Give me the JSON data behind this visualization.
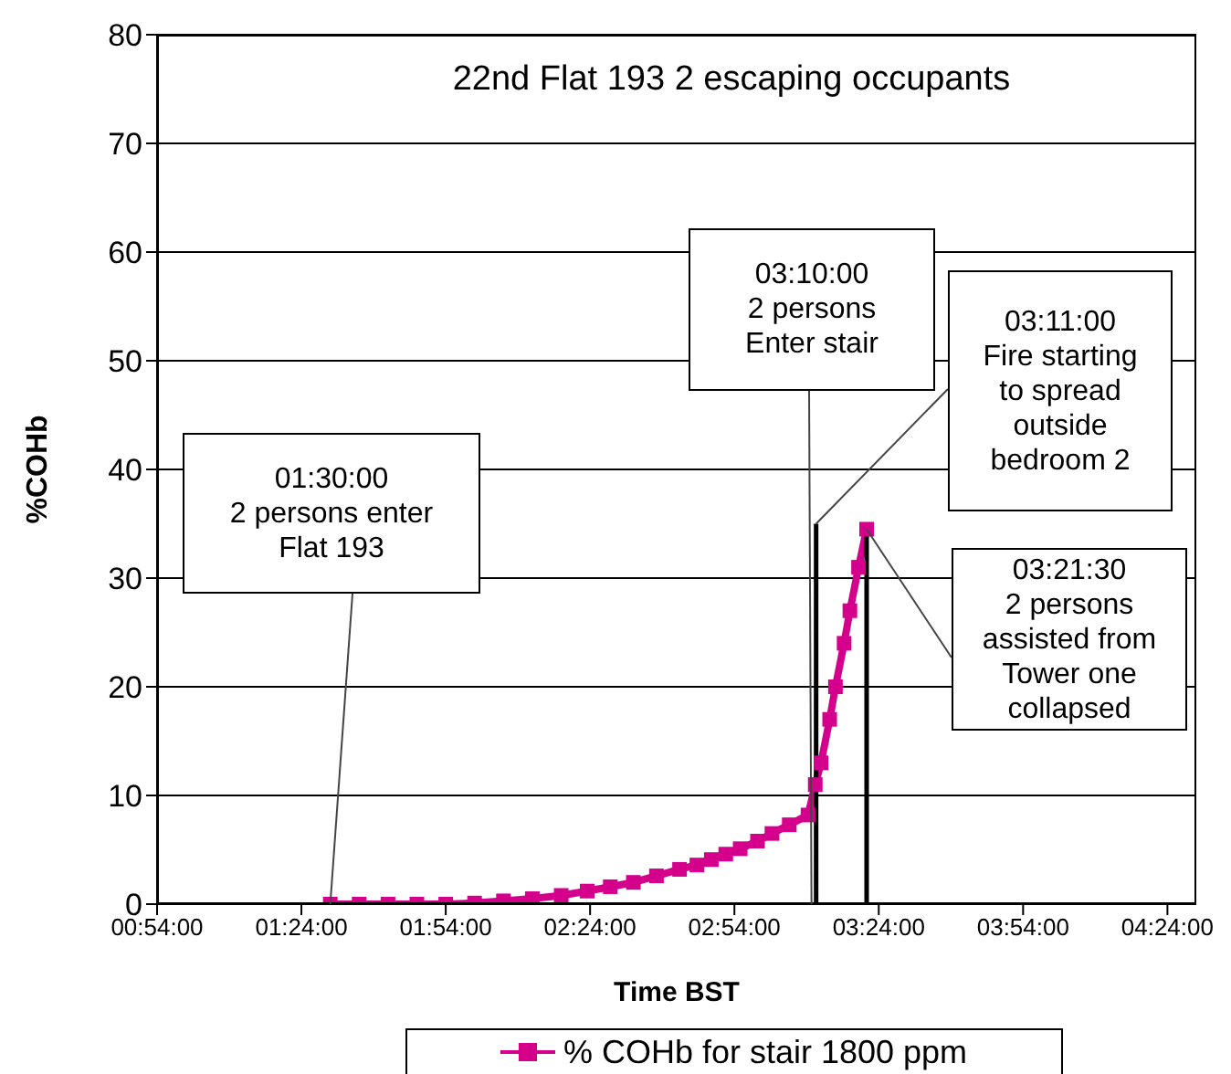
{
  "chart_data": {
    "type": "line",
    "title": "22nd Flat 193 2 escaping occupants",
    "xlabel": "Time BST",
    "ylabel": "%COHb",
    "xlim": [
      0.9,
      4.5
    ],
    "xticks": [
      {
        "value": 0.9,
        "label": "00:54:00"
      },
      {
        "value": 1.4,
        "label": "01:24:00"
      },
      {
        "value": 1.9,
        "label": "01:54:00"
      },
      {
        "value": 2.4,
        "label": "02:24:00"
      },
      {
        "value": 2.9,
        "label": "02:54:00"
      },
      {
        "value": 3.4,
        "label": "03:24:00"
      },
      {
        "value": 3.9,
        "label": "03:54:00"
      },
      {
        "value": 4.4,
        "label": "04:24:00"
      }
    ],
    "ylim": [
      0,
      80
    ],
    "yticks": [
      0,
      10,
      20,
      30,
      40,
      50,
      60,
      70,
      80
    ],
    "grid": "y",
    "legend": "bottom",
    "series": [
      {
        "name": "% COHb for stair 1800 ppm",
        "color": "#d4008c",
        "marker": "square",
        "x": [
          1.5,
          1.6,
          1.7,
          1.8,
          1.9,
          2.0,
          2.1,
          2.2,
          2.3,
          2.39,
          2.47,
          2.55,
          2.63,
          2.71,
          2.77,
          2.82,
          2.87,
          2.92,
          2.98,
          3.03,
          3.09,
          3.155,
          3.18,
          3.2,
          3.23,
          3.25,
          3.28,
          3.3,
          3.33,
          3.358
        ],
        "values": [
          0,
          0,
          0,
          0,
          0,
          0.1,
          0.3,
          0.5,
          0.8,
          1.2,
          1.6,
          2,
          2.6,
          3.2,
          3.6,
          4.1,
          4.6,
          5.1,
          5.8,
          6.5,
          7.3,
          8.2,
          11,
          13,
          17,
          20,
          24,
          27,
          31,
          34.5
        ]
      },
      {
        "color": "#000000",
        "marker": "none",
        "x": [
          3.183,
          3.183
        ],
        "values": [
          0,
          35
        ]
      },
      {
        "color": "#000000",
        "marker": "none",
        "x": [
          3.358,
          3.358
        ],
        "values": [
          0,
          34.5
        ]
      }
    ],
    "annotations": [
      {
        "text": "01:30:00\n2 persons enter\nFlat 193",
        "x": 1.5,
        "y": 0
      },
      {
        "text": "03:10:00\n2 persons\nEnter stair",
        "x": 3.167,
        "y": 0
      },
      {
        "text": "03:11:00\nFire starting\nto spread\noutside\nbedroom 2",
        "x": 3.183,
        "y": 35
      },
      {
        "text": "03:21:30\n2 persons\nassisted from\nTower one\ncollapsed",
        "x": 3.358,
        "y": 34.5
      }
    ]
  }
}
